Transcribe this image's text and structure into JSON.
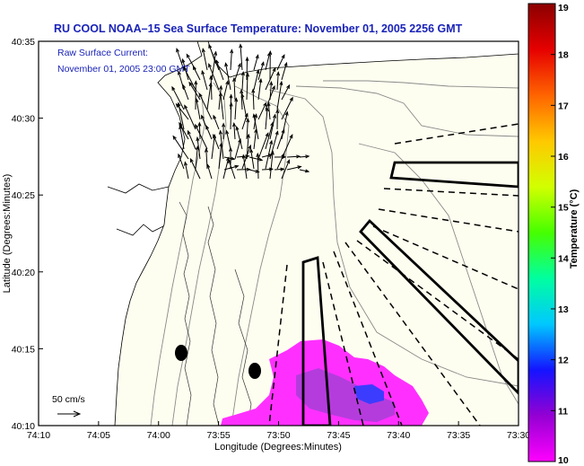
{
  "title": "RU COOL  NOAA–15  Sea Surface Temperature:  November 01, 2005 2256 GMT",
  "inset": {
    "line1": "Raw Surface Current:",
    "line2": "November 01, 2005 23:00 GMT"
  },
  "scale_label": "50 cm/s",
  "xlabel": "Longitude (Degrees:Minutes)",
  "ylabel": "Latitude (Degrees:Minutes)",
  "x_ticks": [
    "74:10",
    "74:05",
    "74:00",
    "73:55",
    "73:50",
    "73:45",
    "73:40",
    "73:35",
    "73:30"
  ],
  "y_ticks": [
    "40:35",
    "40:30",
    "40:25",
    "40:20",
    "40:15",
    "40:10"
  ],
  "colorbar": {
    "label": "Temperature (°C)",
    "ticks": [
      "19",
      "18",
      "17",
      "16",
      "15",
      "14",
      "13",
      "12",
      "11",
      "10"
    ],
    "colors": [
      "#ff00ff",
      "#9400d3",
      "#1414ff",
      "#00c8ff",
      "#00ffa0",
      "#46ff00",
      "#d2ff00",
      "#ffc800",
      "#ff6400",
      "#e60000",
      "#8b0000"
    ]
  },
  "colors": {
    "land": "#ffffff",
    "sea": "#fefef0",
    "text_blue": "#1a23b8"
  },
  "chart_data": {
    "type": "heatmap",
    "title": "RU COOL  NOAA–15  Sea Surface Temperature:  November 01, 2005 2256 GMT",
    "xlabel": "Longitude (Degrees:Minutes)",
    "ylabel": "Latitude (Degrees:Minutes)",
    "xlim": [
      "74:10",
      "73:30"
    ],
    "ylim": [
      "40:10",
      "40:35"
    ],
    "colorbar_range": [
      10,
      19
    ],
    "colorbar_label": "Temperature (°C)",
    "sst_patches": [
      {
        "lon": "73:49",
        "lat": "40:12",
        "temp_c": 10.2
      },
      {
        "lon": "73:47",
        "lat": "40:12",
        "temp_c": 10.9
      },
      {
        "lon": "73:45",
        "lat": "40:11",
        "temp_c": 11.6
      }
    ],
    "current_vector_scale": "50 cm/s"
  }
}
